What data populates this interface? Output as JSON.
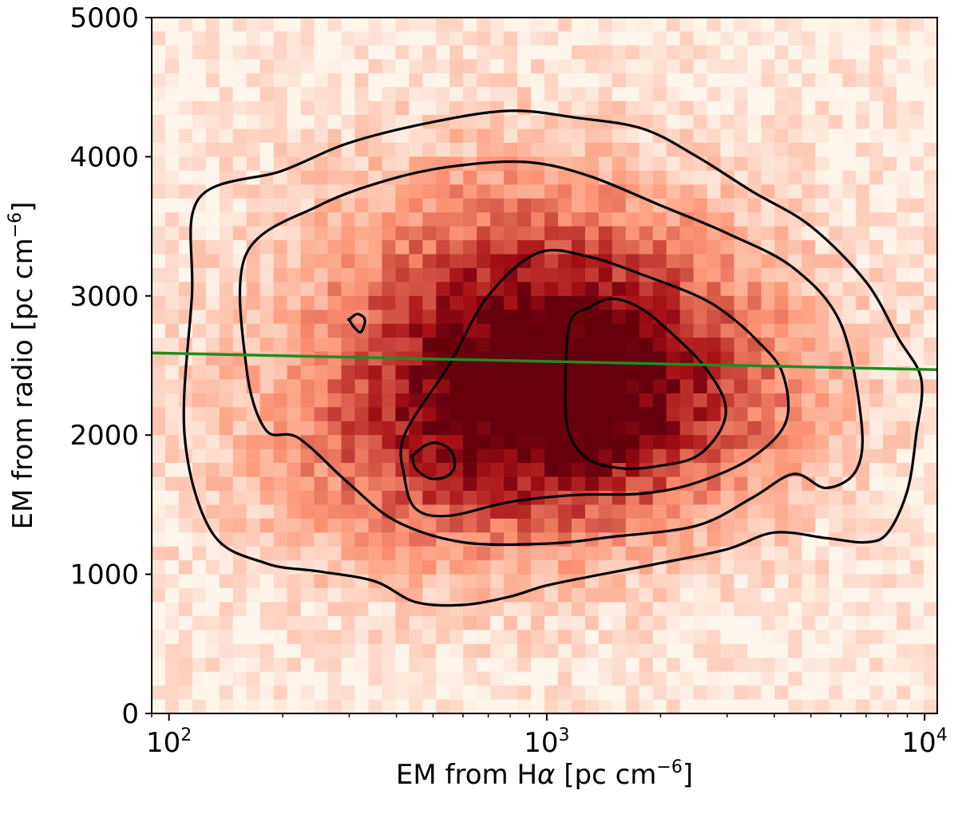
{
  "chart_data": {
    "type": "heatmap",
    "xlabel": "EM from Hα [pc cm⁻⁶]",
    "ylabel": "EM from radio [pc cm⁻⁶]",
    "xlabel_parts": {
      "main": "EM from H",
      "greek": "α",
      "rest": " [pc cm",
      "exp": "−6",
      "close": "]"
    },
    "ylabel_parts": {
      "main": "EM from radio [pc cm",
      "exp": "−6",
      "close": "]"
    },
    "xscale": "log",
    "xlim": [
      90,
      10800
    ],
    "ylim": [
      0,
      5000
    ],
    "xticks": [
      {
        "value": 100,
        "base": "10",
        "exp": "2"
      },
      {
        "value": 1000,
        "base": "10",
        "exp": "3"
      },
      {
        "value": 10000,
        "base": "10",
        "exp": "4"
      }
    ],
    "yticks": [
      0,
      1000,
      2000,
      3000,
      4000,
      5000
    ],
    "ytick_labels": [
      "0",
      "1000",
      "2000",
      "3000",
      "4000",
      "5000"
    ],
    "grid": false,
    "colormap": "Oranges/Reds",
    "colors": {
      "low": "#fff5eb",
      "mid": "#fc9272",
      "high": "#67000d",
      "contour": "#000000",
      "fit_line": "#228b22"
    },
    "fit_line": {
      "x": [
        90,
        10800
      ],
      "y": [
        2590,
        2470
      ]
    },
    "density_peaks": [
      {
        "x": 1500,
        "y": 2300
      },
      {
        "x": 550,
        "y": 1900
      },
      {
        "x": 800,
        "y": 3200
      }
    ],
    "contours": [
      {
        "level": 1,
        "x": [
          120,
          200,
          300,
          500,
          800,
          1200,
          1800,
          2500,
          3500,
          5000,
          7000,
          8500,
          9800,
          9500,
          9000,
          8000,
          7000,
          5500,
          4000,
          3000,
          2000,
          1400,
          1000,
          800,
          600,
          450,
          350,
          250,
          180,
          130,
          110,
          115
        ],
        "y": [
          3700,
          3900,
          4100,
          4250,
          4330,
          4280,
          4200,
          4000,
          3750,
          3500,
          3100,
          2700,
          2400,
          2000,
          1600,
          1300,
          1230,
          1260,
          1300,
          1180,
          1080,
          1000,
          920,
          840,
          780,
          800,
          950,
          1020,
          1080,
          1300,
          2000,
          3000
        ]
      },
      {
        "level": 2,
        "x": [
          160,
          250,
          400,
          600,
          900,
          1300,
          2000,
          3000,
          4500,
          6000,
          6800,
          6600,
          5500,
          4500,
          3500,
          2500,
          1500,
          1000,
          600,
          400,
          300,
          220,
          180,
          160
        ],
        "y": [
          3300,
          3650,
          3850,
          3940,
          3960,
          3860,
          3650,
          3450,
          3200,
          2800,
          2100,
          1750,
          1620,
          1720,
          1550,
          1350,
          1270,
          1220,
          1230,
          1380,
          1650,
          1980,
          2040,
          2500
        ]
      },
      {
        "level": 3,
        "x": [
          420,
          550,
          700,
          950,
          1300,
          1800,
          2500,
          3000,
          3600,
          4200,
          4300,
          3500,
          2500,
          1800,
          1200,
          800,
          550,
          450,
          420
        ],
        "y": [
          2000,
          2500,
          3000,
          3310,
          3280,
          3150,
          3000,
          2870,
          2680,
          2450,
          2100,
          1840,
          1660,
          1580,
          1570,
          1520,
          1420,
          1470,
          1700
        ]
      },
      {
        "level": 4,
        "x": [
          1150,
          1300,
          1500,
          1800,
          2200,
          2600,
          2950,
          2900,
          2500,
          2000,
          1600,
          1300,
          1150,
          1120
        ],
        "y": [
          2800,
          2920,
          2980,
          2900,
          2700,
          2500,
          2250,
          2050,
          1850,
          1780,
          1760,
          1820,
          2000,
          2300
        ]
      },
      {
        "level": 5,
        "x": [
          440,
          480,
          520,
          560,
          570,
          540,
          490,
          450,
          440
        ],
        "y": [
          1850,
          1930,
          1940,
          1880,
          1770,
          1700,
          1690,
          1760,
          1850
        ]
      },
      {
        "level": 5,
        "x": [
          300,
          315,
          330,
          322,
          308,
          300
        ],
        "y": [
          2830,
          2870,
          2830,
          2740,
          2780,
          2830
        ]
      }
    ]
  }
}
